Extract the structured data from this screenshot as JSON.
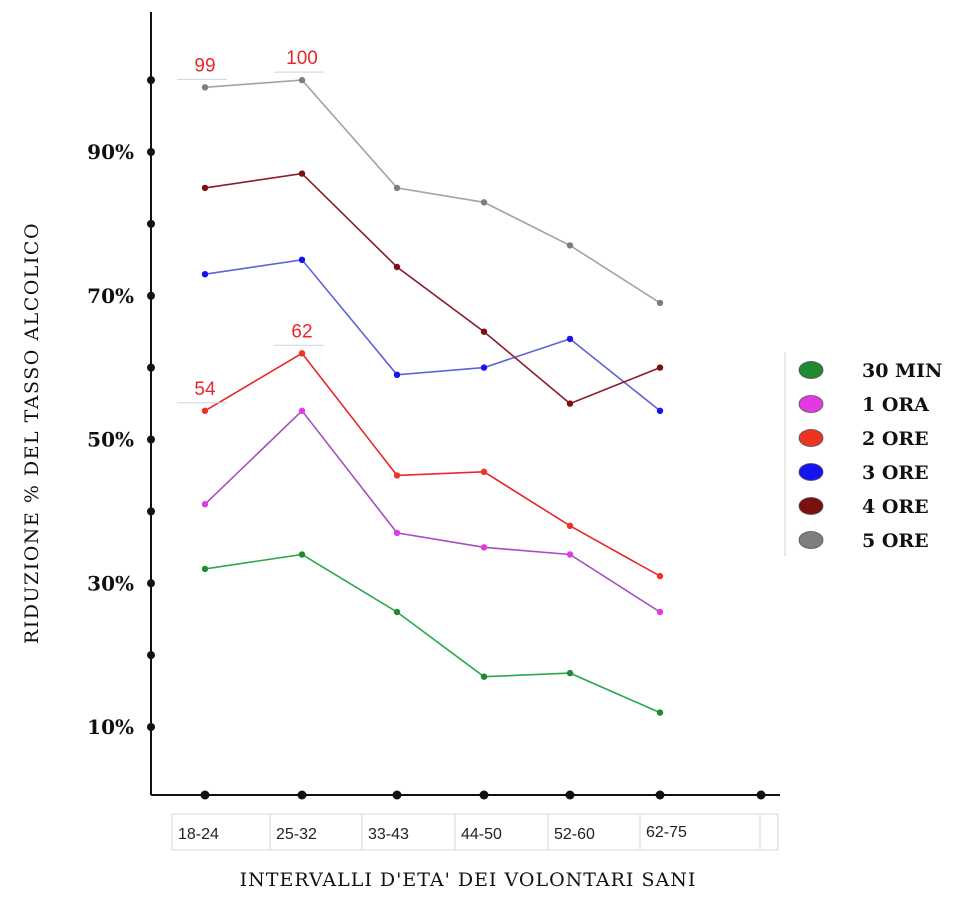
{
  "chart_data": {
    "type": "line",
    "title": "",
    "xlabel": "INTERVALLI D'ETA'  DEI VOLONTARI SANI",
    "ylabel": "RIDUZIONE % DEL TASSO ALCOLICO",
    "categories": [
      "18-24",
      "25-32",
      "33-43",
      "44-50",
      "52-60",
      "62-75"
    ],
    "y_tick_labels": [
      {
        "value": 10,
        "label": "10%"
      },
      {
        "value": 30,
        "label": "30%"
      },
      {
        "value": 50,
        "label": "50%"
      },
      {
        "value": 70,
        "label": "70%"
      },
      {
        "value": 90,
        "label": "90%"
      }
    ],
    "ylim": [
      0,
      108
    ],
    "grid": false,
    "legend_position": "right",
    "series": [
      {
        "name": "30 MIN",
        "color": "#2aa84a",
        "marker_color": "#1f8a2e",
        "values": [
          32,
          34,
          26,
          17,
          17.5,
          12
        ]
      },
      {
        "name": "1 ORA",
        "color": "#a84cc0",
        "marker_color": "#e23ae0",
        "values": [
          41,
          54,
          37,
          35,
          34,
          26
        ]
      },
      {
        "name": "2 ORE",
        "color": "#e8262e",
        "marker_color": "#ee3322",
        "values": [
          54,
          62,
          45,
          45.5,
          38,
          31
        ]
      },
      {
        "name": "3 ORE",
        "color": "#5b63d6",
        "marker_color": "#1414f0",
        "values": [
          73,
          75,
          59,
          60,
          64,
          54
        ]
      },
      {
        "name": "4 ORE",
        "color": "#8b1a2a",
        "marker_color": "#7a1010",
        "values": [
          85,
          87,
          74,
          65,
          55,
          60
        ]
      },
      {
        "name": "5 ORE",
        "color": "#a3a3a3",
        "marker_color": "#7e7e7e",
        "values": [
          99,
          100,
          85,
          83,
          77,
          69
        ]
      }
    ],
    "annotations": [
      {
        "text": "99",
        "category": "18-24",
        "series": "5 ORE"
      },
      {
        "text": "100",
        "category": "25-32",
        "series": "5 ORE"
      },
      {
        "text": "54",
        "category": "18-24",
        "series": "2 ORE"
      },
      {
        "text": "62",
        "category": "25-32",
        "series": "2 ORE"
      }
    ]
  }
}
